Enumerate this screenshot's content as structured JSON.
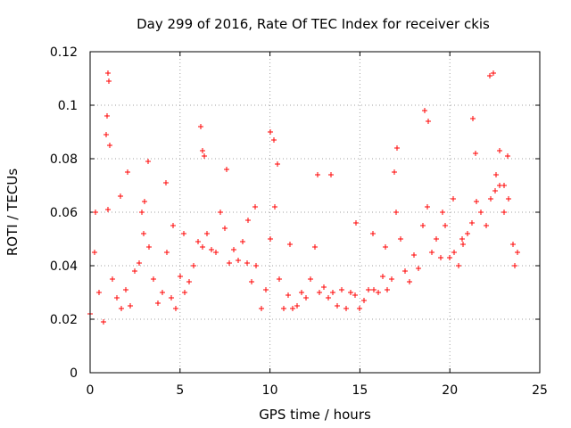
{
  "chart_data": {
    "type": "scatter",
    "title": "Day 299 of 2016, Rate Of TEC Index for receiver ckis",
    "xlabel": "GPS time / hours",
    "ylabel": "ROTI / TECUs",
    "xlim": [
      0,
      25
    ],
    "ylim": [
      0,
      0.12
    ],
    "x_ticks": [
      0,
      5,
      10,
      15,
      20,
      25
    ],
    "x_tick_labels": [
      "0",
      "5",
      "10",
      "15",
      "20",
      "25"
    ],
    "y_ticks": [
      0,
      0.02,
      0.04,
      0.06,
      0.08,
      0.1,
      0.12
    ],
    "y_tick_labels": [
      "0",
      "0.02",
      "0.04",
      "0.06",
      "0.08",
      "0.1",
      "0.12"
    ],
    "grid": true,
    "marker": "plus",
    "color": "#ff0000",
    "series": [
      {
        "name": "ROTI",
        "x": [
          0.0,
          0.25,
          0.5,
          0.75,
          1.0,
          1.25,
          1.5,
          1.75,
          2.0,
          2.25,
          2.5,
          2.75,
          3.0,
          3.25,
          3.5,
          3.75,
          4.0,
          4.25,
          4.5,
          4.75,
          5.0,
          5.25,
          5.5,
          5.75,
          6.0,
          6.25,
          6.5,
          6.75,
          7.0,
          7.25,
          7.5,
          7.75,
          8.0,
          8.25,
          8.5,
          8.75,
          9.0,
          9.25,
          9.5,
          9.75,
          10.0,
          10.25,
          10.5,
          10.75,
          11.0,
          11.25,
          11.5,
          11.75,
          12.0,
          12.25,
          12.5,
          12.75,
          13.0,
          13.25,
          13.5,
          13.75,
          14.0,
          14.25,
          14.5,
          14.75,
          15.0,
          15.25,
          15.5,
          15.75,
          16.0,
          16.25,
          16.5,
          16.75,
          17.0,
          17.25,
          17.5,
          17.75,
          18.0,
          18.25,
          18.5,
          18.75,
          19.0,
          19.25,
          19.5,
          19.75,
          20.0,
          20.25,
          20.5,
          20.75,
          21.0,
          21.25,
          21.5,
          21.75,
          22.0,
          22.25,
          22.5,
          22.75,
          23.0,
          23.25,
          23.5,
          23.75,
          0.9,
          0.95,
          1.0,
          1.05,
          1.1,
          2.9,
          3.05,
          3.2,
          6.15,
          6.25,
          6.35,
          7.6,
          10.0,
          10.2,
          10.4,
          12.65,
          16.9,
          17.05,
          18.6,
          18.8,
          21.3,
          21.45,
          22.2,
          22.4,
          22.55,
          22.75,
          23.0,
          23.2,
          0.3,
          1.7,
          2.1,
          4.2,
          4.6,
          5.2,
          8.8,
          9.2,
          11.1,
          13.4,
          14.8,
          15.7,
          16.4,
          19.6,
          20.2,
          20.7,
          23.6
        ],
        "y": [
          0.022,
          0.045,
          0.03,
          0.019,
          0.061,
          0.035,
          0.028,
          0.024,
          0.031,
          0.025,
          0.038,
          0.041,
          0.052,
          0.047,
          0.035,
          0.026,
          0.03,
          0.045,
          0.028,
          0.024,
          0.036,
          0.03,
          0.034,
          0.04,
          0.049,
          0.047,
          0.052,
          0.046,
          0.045,
          0.06,
          0.054,
          0.041,
          0.046,
          0.042,
          0.049,
          0.041,
          0.034,
          0.04,
          0.024,
          0.031,
          0.05,
          0.062,
          0.035,
          0.024,
          0.029,
          0.024,
          0.025,
          0.03,
          0.028,
          0.035,
          0.047,
          0.03,
          0.032,
          0.028,
          0.03,
          0.025,
          0.031,
          0.024,
          0.03,
          0.029,
          0.024,
          0.027,
          0.031,
          0.031,
          0.03,
          0.036,
          0.031,
          0.035,
          0.06,
          0.05,
          0.038,
          0.034,
          0.044,
          0.039,
          0.055,
          0.062,
          0.045,
          0.05,
          0.043,
          0.055,
          0.043,
          0.045,
          0.04,
          0.048,
          0.052,
          0.056,
          0.064,
          0.06,
          0.055,
          0.065,
          0.068,
          0.07,
          0.06,
          0.065,
          0.048,
          0.045,
          0.089,
          0.096,
          0.112,
          0.109,
          0.085,
          0.06,
          0.064,
          0.079,
          0.092,
          0.083,
          0.081,
          0.076,
          0.09,
          0.087,
          0.078,
          0.074,
          0.075,
          0.084,
          0.098,
          0.094,
          0.095,
          0.082,
          0.111,
          0.112,
          0.074,
          0.083,
          0.07,
          0.081,
          0.06,
          0.066,
          0.075,
          0.071,
          0.055,
          0.052,
          0.057,
          0.062,
          0.048,
          0.074,
          0.056,
          0.052,
          0.047,
          0.06,
          0.065,
          0.05,
          0.04
        ]
      }
    ]
  }
}
